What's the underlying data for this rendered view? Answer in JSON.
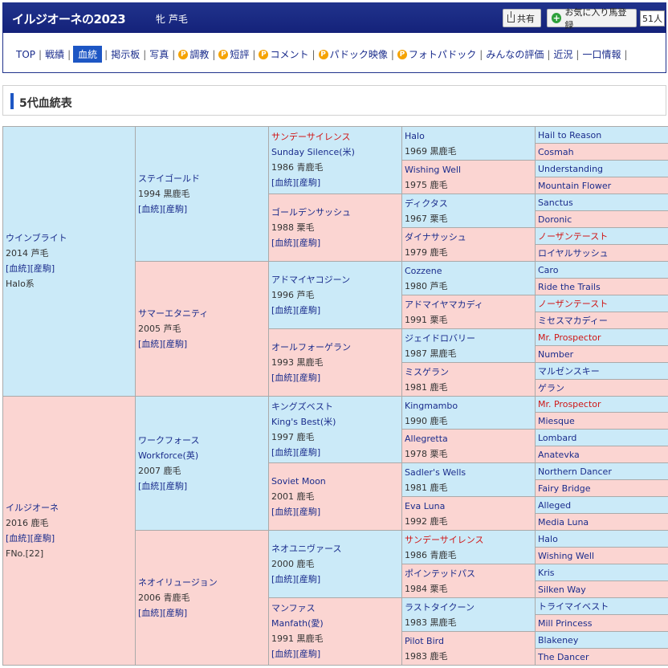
{
  "header": {
    "title": "イルジオーネの2023",
    "sex_color": "牝 芦毛",
    "share_label": "共有",
    "favorite_label": "お気に入り馬登録",
    "favorite_count": "51人"
  },
  "nav": {
    "items": [
      {
        "label": "TOP",
        "active": false,
        "badge": false
      },
      {
        "label": "戦績",
        "active": false,
        "badge": false
      },
      {
        "label": "血統",
        "active": true,
        "badge": false
      },
      {
        "label": "掲示板",
        "active": false,
        "badge": false
      },
      {
        "label": "写真",
        "active": false,
        "badge": false
      },
      {
        "label": "調教",
        "active": false,
        "badge": true
      },
      {
        "label": "短評",
        "active": false,
        "badge": true
      },
      {
        "label": "コメント",
        "active": false,
        "badge": true
      },
      {
        "label": "パドック映像",
        "active": false,
        "badge": true
      },
      {
        "label": "フォトパドック",
        "active": false,
        "badge": true
      },
      {
        "label": "みんなの評価",
        "active": false,
        "badge": false
      },
      {
        "label": "近況",
        "active": false,
        "badge": false
      },
      {
        "label": "一口情報",
        "active": false,
        "badge": false
      }
    ],
    "badge_letter": "P"
  },
  "section_title": "5代血統表",
  "pedigree": {
    "links_label": "[血統][産駒]",
    "gen1": [
      {
        "name": "ウインブライト",
        "info": "2014 芦毛",
        "note": "Halo系",
        "sex": "m"
      },
      {
        "name": "イルジオーネ",
        "info": "2016 鹿毛",
        "note": "FNo.[22]",
        "sex": "f"
      }
    ],
    "gen2": [
      {
        "name": "ステイゴールド",
        "info": "1994 黒鹿毛",
        "sex": "m"
      },
      {
        "name": "サマーエタニティ",
        "info": "2005 芦毛",
        "sex": "f"
      },
      {
        "name": "ワークフォース",
        "alt": "Workforce(英)",
        "info": "2007 鹿毛",
        "sex": "m"
      },
      {
        "name": "ネオイリュージョン",
        "info": "2006 青鹿毛",
        "sex": "f"
      }
    ],
    "gen3": [
      {
        "name": "サンデーサイレンス",
        "alt": "Sunday Silence(米)",
        "info": "1986 青鹿毛",
        "sex": "m",
        "red": true
      },
      {
        "name": "ゴールデンサッシュ",
        "info": "1988 栗毛",
        "sex": "f"
      },
      {
        "name": "アドマイヤコジーン",
        "info": "1996 芦毛",
        "sex": "m"
      },
      {
        "name": "オールフォーゲラン",
        "info": "1993 黒鹿毛",
        "sex": "f"
      },
      {
        "name": "キングズベスト",
        "alt": "King's Best(米)",
        "info": "1997 鹿毛",
        "sex": "m"
      },
      {
        "name": "Soviet Moon",
        "info": "2001 鹿毛",
        "sex": "f"
      },
      {
        "name": "ネオユニヴァース",
        "info": "2000 鹿毛",
        "sex": "m"
      },
      {
        "name": "マンファス",
        "alt": "Manfath(愛)",
        "info": "1991 黒鹿毛",
        "sex": "f"
      }
    ],
    "gen4": [
      {
        "name": "Halo",
        "info": "1969 黒鹿毛",
        "sex": "m"
      },
      {
        "name": "Wishing Well",
        "info": "1975 鹿毛",
        "sex": "f"
      },
      {
        "name": "ディクタス",
        "info": "1967 栗毛",
        "sex": "m"
      },
      {
        "name": "ダイナサッシュ",
        "info": "1979 鹿毛",
        "sex": "f"
      },
      {
        "name": "Cozzene",
        "info": "1980 芦毛",
        "sex": "m"
      },
      {
        "name": "アドマイヤマカディ",
        "info": "1991 栗毛",
        "sex": "f"
      },
      {
        "name": "ジェイドロバリー",
        "info": "1987 黒鹿毛",
        "sex": "m"
      },
      {
        "name": "ミスゲラン",
        "info": "1981 鹿毛",
        "sex": "f"
      },
      {
        "name": "Kingmambo",
        "info": "1990 鹿毛",
        "sex": "m"
      },
      {
        "name": "Allegretta",
        "info": "1978 栗毛",
        "sex": "f"
      },
      {
        "name": "Sadler's Wells",
        "info": "1981 鹿毛",
        "sex": "m"
      },
      {
        "name": "Eva Luna",
        "info": "1992 鹿毛",
        "sex": "f"
      },
      {
        "name": "サンデーサイレンス",
        "info": "1986 青鹿毛",
        "sex": "m",
        "red": true
      },
      {
        "name": "ポインテッドパス",
        "info": "1984 栗毛",
        "sex": "f"
      },
      {
        "name": "ラストタイクーン",
        "info": "1983 黒鹿毛",
        "sex": "m"
      },
      {
        "name": "Pilot Bird",
        "info": "1983 鹿毛",
        "sex": "f"
      }
    ],
    "gen5": [
      {
        "name": "Hail to Reason",
        "sex": "m"
      },
      {
        "name": "Cosmah",
        "sex": "f"
      },
      {
        "name": "Understanding",
        "sex": "m"
      },
      {
        "name": "Mountain Flower",
        "sex": "f"
      },
      {
        "name": "Sanctus",
        "sex": "m"
      },
      {
        "name": "Doronic",
        "sex": "f"
      },
      {
        "name": "ノーザンテースト",
        "sex": "m",
        "red": true
      },
      {
        "name": "ロイヤルサッシュ",
        "sex": "f"
      },
      {
        "name": "Caro",
        "sex": "m"
      },
      {
        "name": "Ride the Trails",
        "sex": "f"
      },
      {
        "name": "ノーザンテースト",
        "sex": "m",
        "red": true
      },
      {
        "name": "ミセスマカディー",
        "sex": "f"
      },
      {
        "name": "Mr. Prospector",
        "sex": "m",
        "red": true
      },
      {
        "name": "Number",
        "sex": "f"
      },
      {
        "name": "マルゼンスキー",
        "sex": "m"
      },
      {
        "name": "ゲラン",
        "sex": "f"
      },
      {
        "name": "Mr. Prospector",
        "sex": "m",
        "red": true
      },
      {
        "name": "Miesque",
        "sex": "f"
      },
      {
        "name": "Lombard",
        "sex": "m"
      },
      {
        "name": "Anatevka",
        "sex": "f"
      },
      {
        "name": "Northern Dancer",
        "sex": "m"
      },
      {
        "name": "Fairy Bridge",
        "sex": "f"
      },
      {
        "name": "Alleged",
        "sex": "m"
      },
      {
        "name": "Media Luna",
        "sex": "f"
      },
      {
        "name": "Halo",
        "sex": "m"
      },
      {
        "name": "Wishing Well",
        "sex": "f"
      },
      {
        "name": "Kris",
        "sex": "m"
      },
      {
        "name": "Silken Way",
        "sex": "f"
      },
      {
        "name": "トライマイベスト",
        "sex": "m"
      },
      {
        "name": "Mill Princess",
        "sex": "f"
      },
      {
        "name": "Blakeney",
        "sex": "m"
      },
      {
        "name": "The Dancer",
        "sex": "f"
      }
    ]
  },
  "colors": {
    "header_bg": "#1a2a84",
    "sire_bg": "#cbeaf8",
    "dam_bg": "#fbd5d2",
    "link": "#1a2c8c",
    "highlight": "#d01717"
  }
}
